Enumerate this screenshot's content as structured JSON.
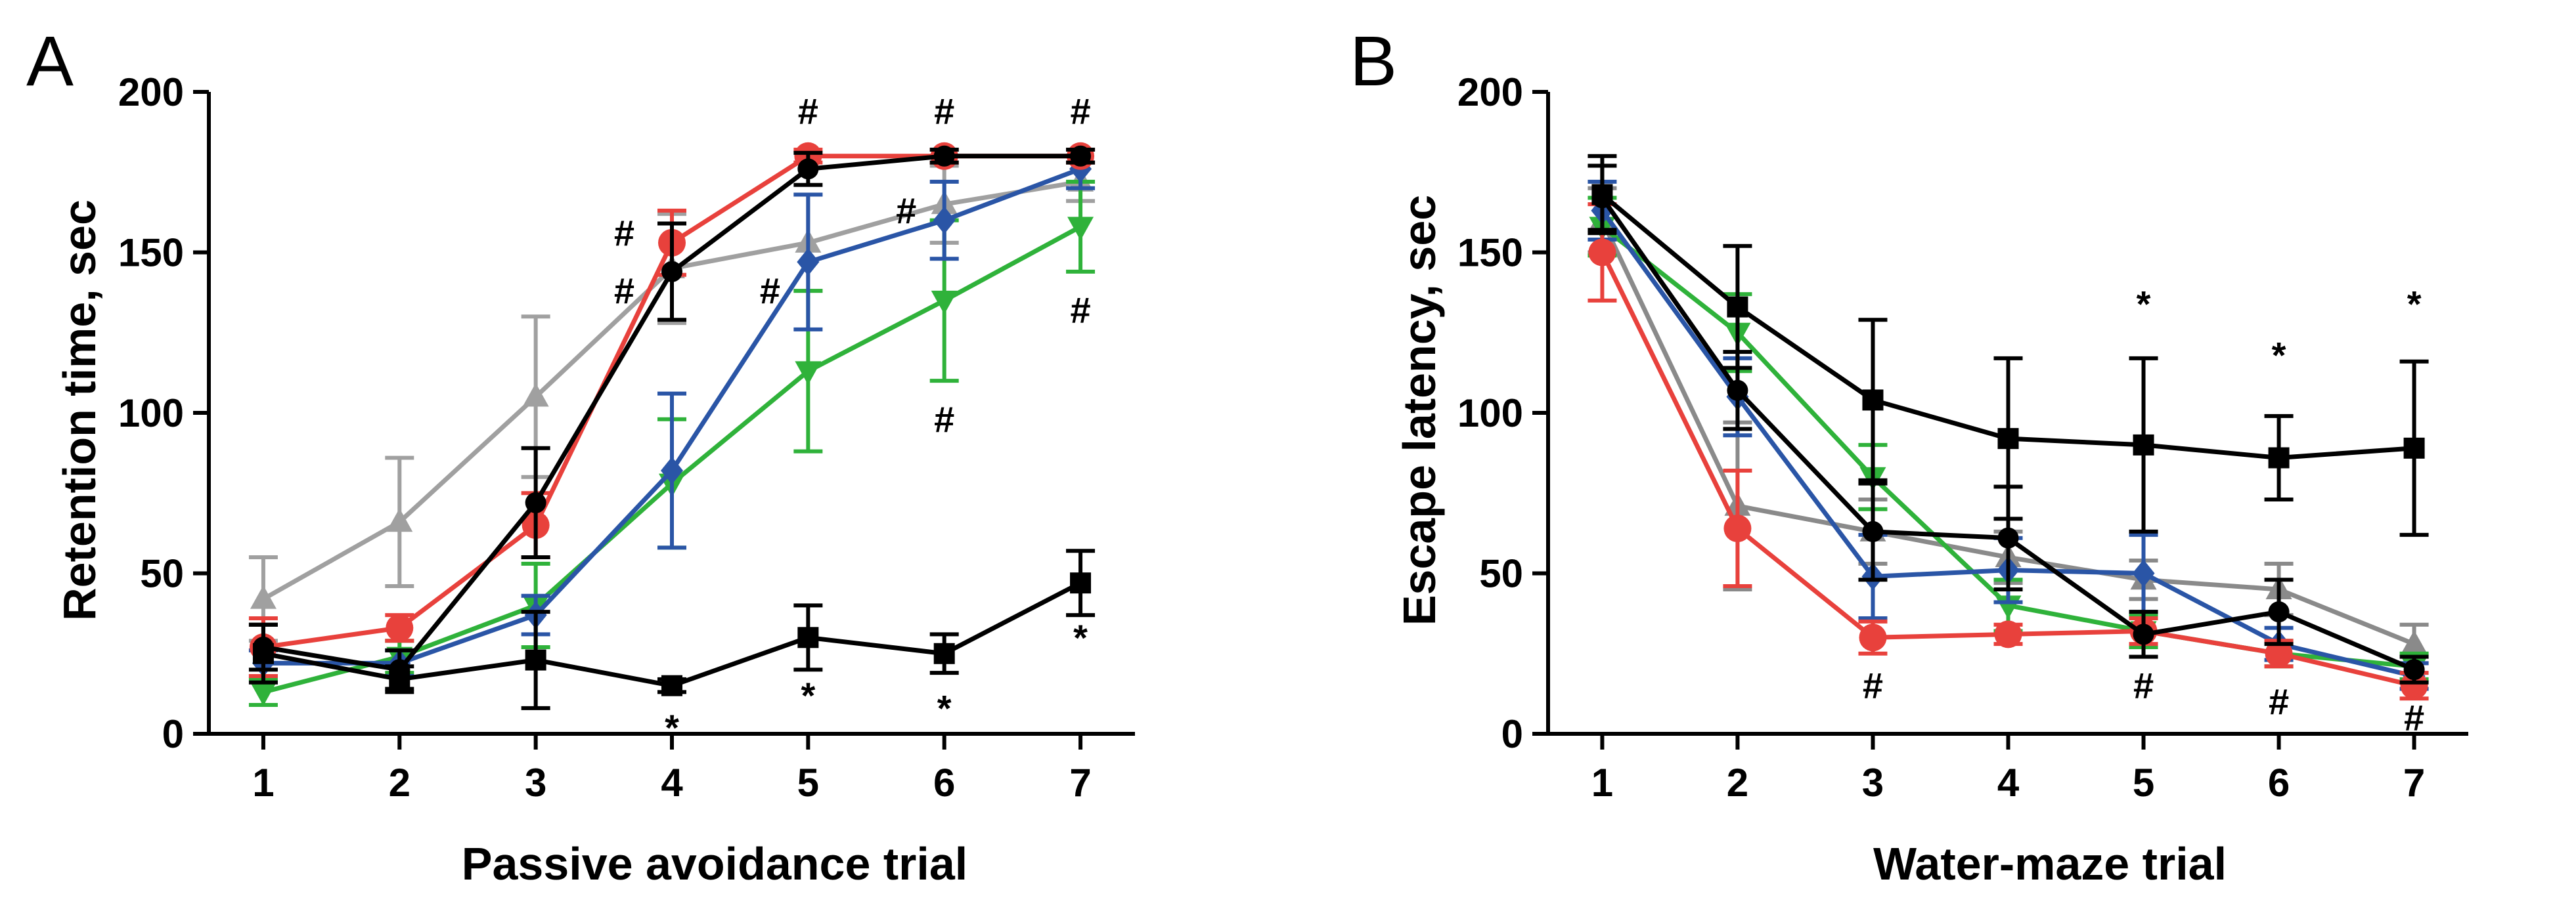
{
  "colors": {
    "red": "#e8413c",
    "blue": "#2a55a6",
    "green": "#2fb23a",
    "gray": "#a0a0a0",
    "black": "#000000"
  },
  "chart_data": [
    {
      "panel": "A",
      "type": "line",
      "xlabel": "Passive avoidance trial",
      "ylabel": "Retention time, sec",
      "x": [
        1,
        2,
        3,
        4,
        5,
        6,
        7
      ],
      "xlim": [
        0.6,
        7.4
      ],
      "ylim": [
        0,
        200
      ],
      "yticks": [
        0,
        50,
        100,
        150,
        200
      ],
      "series": [
        {
          "name": "gray",
          "color": "#a0a0a0",
          "marker": "triangle-up",
          "values": [
            42,
            66,
            105,
            145,
            153,
            165,
            172
          ],
          "err": [
            13,
            20,
            25,
            17,
            15,
            12,
            6
          ]
        },
        {
          "name": "green",
          "color": "#2fb23a",
          "marker": "triangle-down",
          "values": [
            13,
            24,
            40,
            78,
            113,
            135,
            158
          ],
          "err": [
            4,
            5,
            13,
            20,
            25,
            25,
            14
          ]
        },
        {
          "name": "blue",
          "color": "#2a55a6",
          "marker": "diamond",
          "values": [
            22,
            22,
            37,
            82,
            147,
            160,
            176
          ],
          "err": [
            4,
            4,
            6,
            24,
            21,
            12,
            6
          ]
        },
        {
          "name": "red",
          "color": "#e8413c",
          "marker": "circle",
          "values": [
            27,
            33,
            65,
            153,
            180,
            180,
            180
          ],
          "err": [
            9,
            4,
            10,
            10,
            2,
            2,
            2
          ]
        },
        {
          "name": "black-circle",
          "color": "#000000",
          "marker": "circle-small",
          "values": [
            27,
            20,
            72,
            144,
            176,
            180,
            180
          ],
          "err": [
            7,
            6,
            17,
            15,
            5,
            2,
            2
          ]
        },
        {
          "name": "black-square",
          "color": "#000000",
          "marker": "square",
          "values": [
            25,
            17,
            23,
            15,
            30,
            25,
            47
          ],
          "err": [
            9,
            4,
            15,
            2,
            10,
            6,
            10
          ]
        }
      ],
      "annotations": [
        {
          "text": "*",
          "x": 4,
          "y": -2
        },
        {
          "text": "*",
          "x": 5,
          "y": 8
        },
        {
          "text": "*",
          "x": 6,
          "y": 4
        },
        {
          "text": "*",
          "x": 7,
          "y": 26
        },
        {
          "text": "#",
          "x": 3.65,
          "y": 152
        },
        {
          "text": "#",
          "x": 3.65,
          "y": 134
        },
        {
          "text": "#",
          "x": 4.72,
          "y": 134
        },
        {
          "text": "#",
          "x": 5.0,
          "y": 190
        },
        {
          "text": "#",
          "x": 5.72,
          "y": 159
        },
        {
          "text": "#",
          "x": 6.0,
          "y": 190
        },
        {
          "text": "#",
          "x": 6.0,
          "y": 94
        },
        {
          "text": "#",
          "x": 7.0,
          "y": 190
        },
        {
          "text": "#",
          "x": 7.0,
          "y": 128
        }
      ]
    },
    {
      "panel": "B",
      "type": "line",
      "xlabel": "Water-maze trial",
      "ylabel": "Escape latency, sec",
      "x": [
        1,
        2,
        3,
        4,
        5,
        6,
        7
      ],
      "xlim": [
        0.6,
        7.4
      ],
      "ylim": [
        0,
        200
      ],
      "yticks": [
        0,
        50,
        100,
        150,
        200
      ],
      "series": [
        {
          "name": "gray",
          "color": "#8a8a8a",
          "marker": "triangle-up",
          "values": [
            160,
            71,
            63,
            55,
            48,
            45,
            28
          ],
          "err": [
            10,
            26,
            10,
            8,
            6,
            8,
            6
          ]
        },
        {
          "name": "green",
          "color": "#2fb23a",
          "marker": "triangle-down",
          "values": [
            158,
            125,
            80,
            40,
            32,
            25,
            21
          ],
          "err": [
            9,
            12,
            10,
            8,
            5,
            4,
            4
          ]
        },
        {
          "name": "blue",
          "color": "#2a55a6",
          "marker": "diamond",
          "values": [
            163,
            105,
            49,
            51,
            50,
            28,
            18
          ],
          "err": [
            9,
            12,
            13,
            10,
            12,
            5,
            4
          ]
        },
        {
          "name": "red",
          "color": "#e8413c",
          "marker": "circle",
          "values": [
            150,
            64,
            30,
            31,
            32,
            25,
            15
          ],
          "err": [
            15,
            18,
            5,
            3,
            4,
            4,
            4
          ]
        },
        {
          "name": "black-circle",
          "color": "#000000",
          "marker": "circle-small",
          "values": [
            167,
            107,
            63,
            61,
            31,
            38,
            20
          ],
          "err": [
            10,
            12,
            15,
            16,
            7,
            10,
            4
          ]
        },
        {
          "name": "black-square",
          "color": "#000000",
          "marker": "square",
          "values": [
            168,
            133,
            104,
            92,
            90,
            86,
            89
          ],
          "err": [
            12,
            19,
            25,
            25,
            27,
            13,
            27
          ]
        }
      ],
      "annotations": [
        {
          "text": "*",
          "x": 5,
          "y": 130
        },
        {
          "text": "*",
          "x": 6,
          "y": 114
        },
        {
          "text": "*",
          "x": 7,
          "y": 130
        },
        {
          "text": "#",
          "x": 3,
          "y": 11
        },
        {
          "text": "#",
          "x": 5,
          "y": 11
        },
        {
          "text": "#",
          "x": 6,
          "y": 6
        },
        {
          "text": "#",
          "x": 7,
          "y": 1
        }
      ]
    }
  ]
}
